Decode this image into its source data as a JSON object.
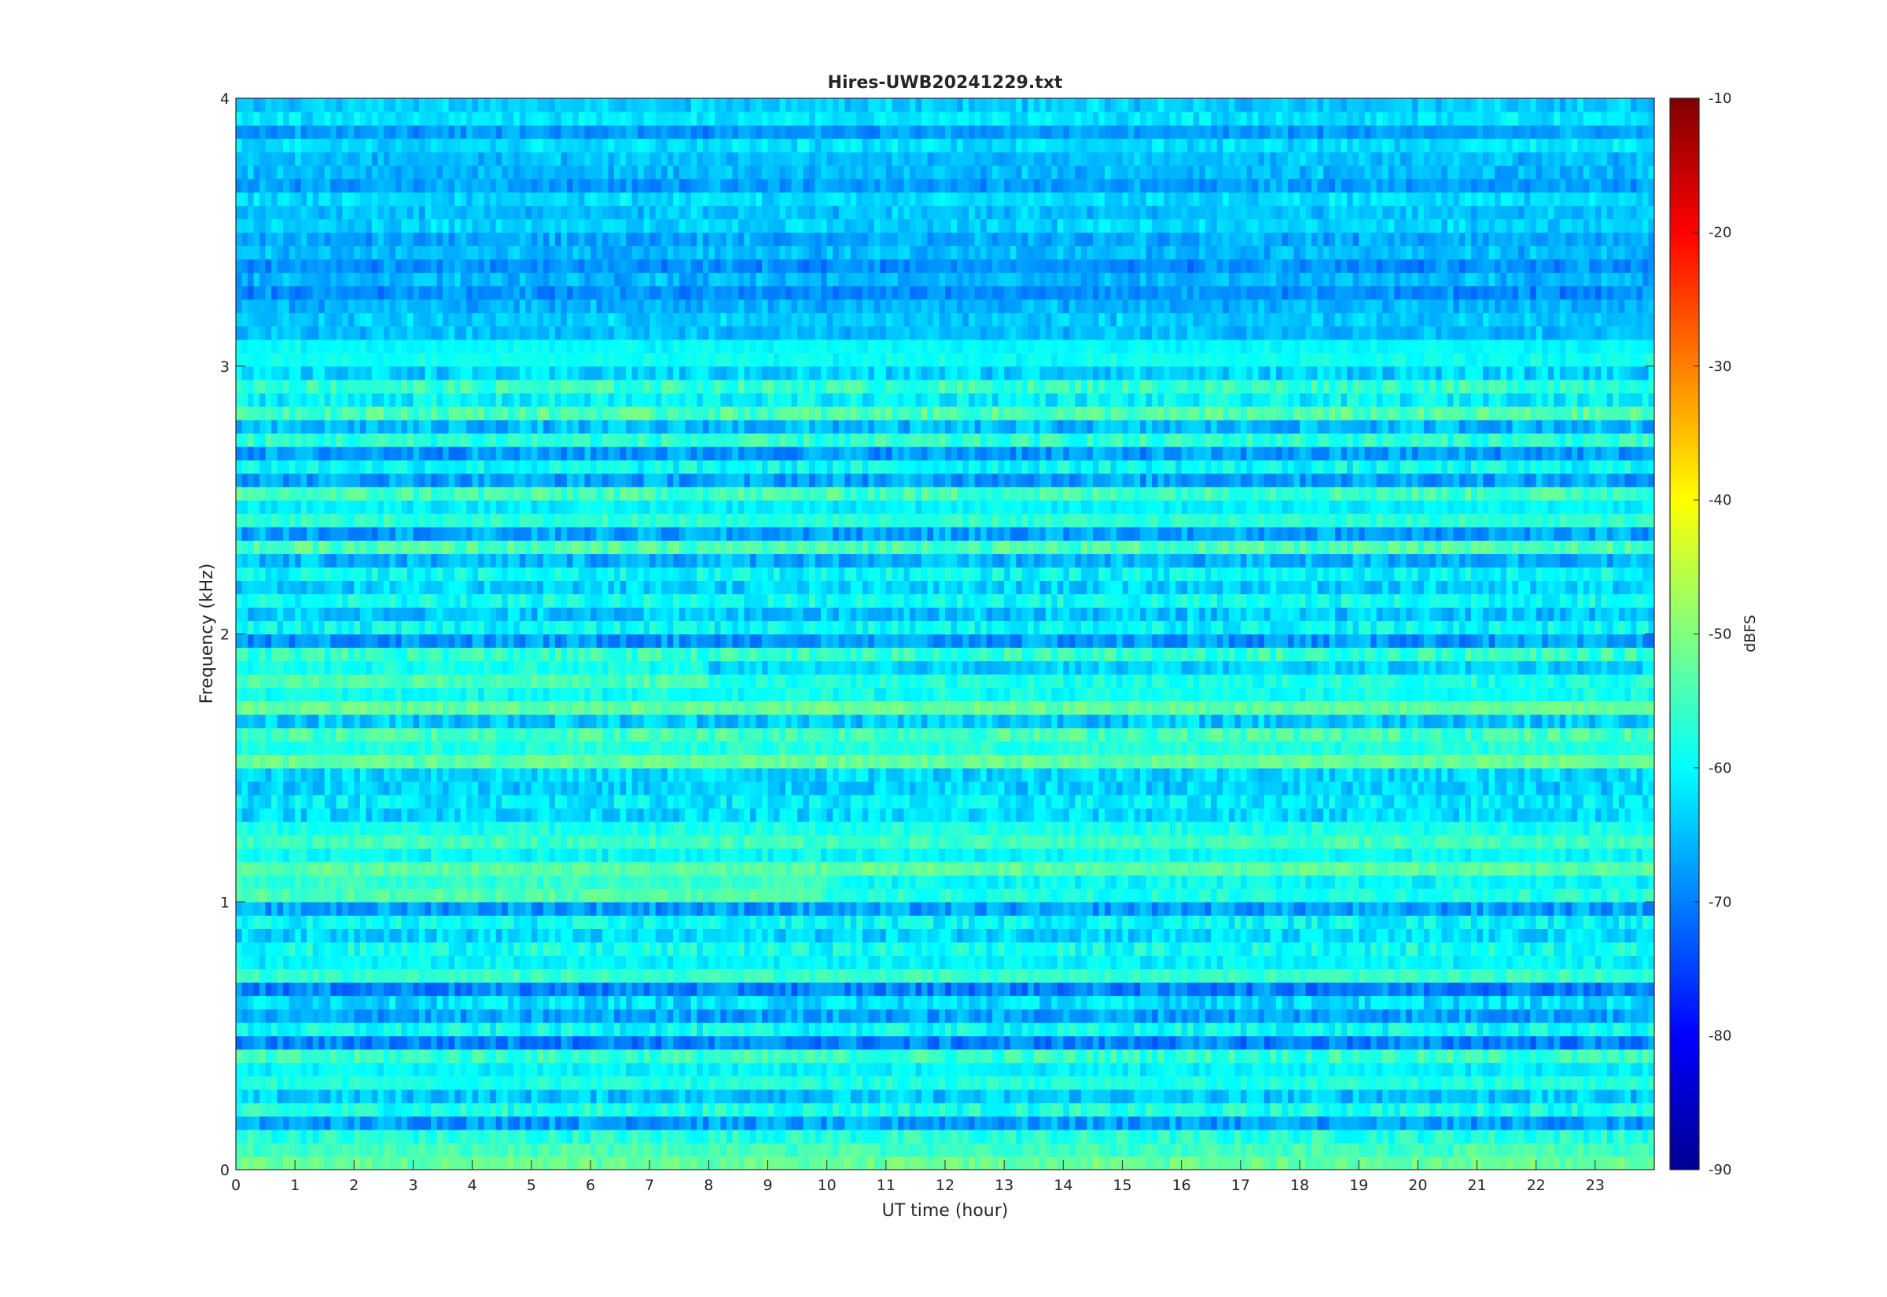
{
  "chart_data": {
    "type": "heatmap",
    "title": "Hires-UWB20241229.txt",
    "xlabel": "UT time (hour)",
    "ylabel": "Frequency (kHz)",
    "xlim": [
      0,
      24
    ],
    "ylim": [
      0,
      4
    ],
    "x_ticks": [
      "0",
      "1",
      "2",
      "3",
      "4",
      "5",
      "6",
      "7",
      "8",
      "9",
      "10",
      "11",
      "12",
      "13",
      "14",
      "15",
      "16",
      "17",
      "18",
      "19",
      "20",
      "21",
      "22",
      "23"
    ],
    "y_ticks": [
      "0",
      "1",
      "2",
      "3",
      "4"
    ],
    "colorbar": {
      "label": "dBFS",
      "range": [
        -90,
        -10
      ],
      "ticks": [
        "-10",
        "-20",
        "-30",
        "-40",
        "-50",
        "-60",
        "-70",
        "-80",
        "-90"
      ],
      "colormap": "jet"
    },
    "features": {
      "baseline_level_dbfs": -62,
      "strong_bands_khz": [
        {
          "f": 0.05,
          "level": -43,
          "note": "constant strong band near 0 kHz"
        },
        {
          "f": 0.35,
          "level": -48
        },
        {
          "f": 0.75,
          "level": -47
        },
        {
          "f": 1.05,
          "level": -40,
          "hours": [
            0,
            10
          ]
        },
        {
          "f": 1.15,
          "level": -44
        },
        {
          "f": 1.25,
          "level": -46
        },
        {
          "f": 1.85,
          "level": -40,
          "hours": [
            0,
            8
          ]
        },
        {
          "f": 1.75,
          "level": -43
        },
        {
          "f": 1.55,
          "level": -44
        },
        {
          "f": 2.45,
          "level": -47
        },
        {
          "f": 3.05,
          "level": -52
        }
      ],
      "weak_region_khz": [
        3.0,
        4.0
      ],
      "weak_region_level_dbfs": -68
    }
  }
}
